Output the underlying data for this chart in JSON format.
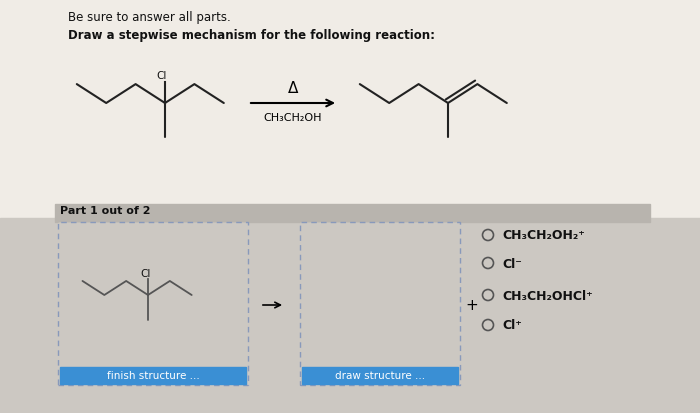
{
  "bg_top": "#f0ece6",
  "bg_bottom": "#ccc8c2",
  "part_bar_color": "#b8b4ae",
  "title1": "Be sure to answer all parts.",
  "title2": "Draw a stepwise mechanism for the following reaction:",
  "part_label": "Part 1 out of 2",
  "reaction_condition_top": "Δ",
  "reaction_condition_bottom": "CH₃CH₂OH",
  "radio_options": [
    "CH₃CH₂OH₂⁺",
    "Cl⁻",
    "CH₃CH₂OHCl⁺",
    "Cl⁺"
  ],
  "finish_btn_text": "finish structure ...",
  "draw_btn_text": "draw structure ...",
  "plus_sign": "+",
  "btn_color": "#3a8fd4",
  "btn_text_color": "#ffffff",
  "box_border_color": "#8899bb",
  "font_color": "#111111",
  "mol_color": "#555555",
  "ci_label": "Cl"
}
